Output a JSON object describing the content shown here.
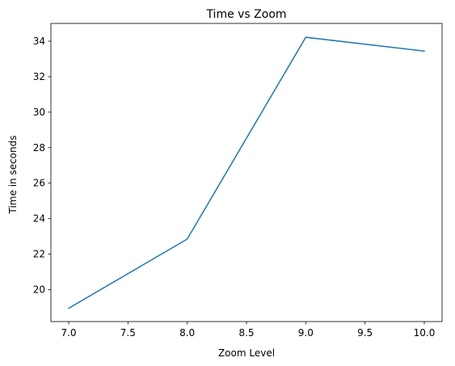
{
  "chart_data": {
    "type": "line",
    "title": "Time vs Zoom",
    "xlabel": "Zoom Level",
    "ylabel": "Time in seconds",
    "xlim": [
      6.85,
      10.15
    ],
    "ylim": [
      18.2,
      35.0
    ],
    "x_ticks": [
      7.0,
      7.5,
      8.0,
      8.5,
      9.0,
      9.5,
      10.0
    ],
    "x_tick_labels": [
      "7.0",
      "7.5",
      "8.0",
      "8.5",
      "9.0",
      "9.5",
      "10.0"
    ],
    "y_ticks": [
      20,
      22,
      24,
      26,
      28,
      30,
      32,
      34
    ],
    "y_tick_labels": [
      "20",
      "22",
      "24",
      "26",
      "28",
      "30",
      "32",
      "34"
    ],
    "grid": false,
    "series": [
      {
        "color": "#1f77b4",
        "x": [
          7.0,
          8.0,
          9.0,
          10.0
        ],
        "y": [
          18.95,
          22.85,
          34.22,
          33.44
        ]
      }
    ]
  }
}
